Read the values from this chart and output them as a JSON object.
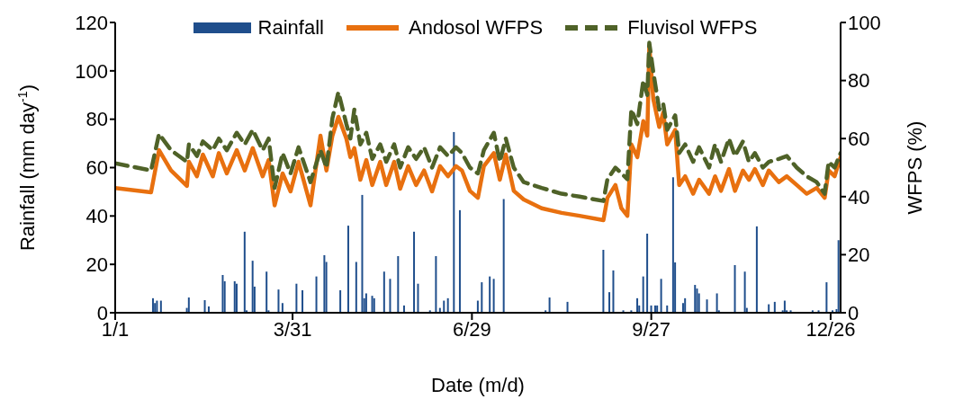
{
  "chart_data": {
    "type": "line",
    "xlabel": "Date (m/d)",
    "ylabel": "Rainfall (mm day$^{-1}$)",
    "y2label": "WFPS (%)",
    "xlim": [
      "--01-01",
      "--12-31"
    ],
    "xticks": [
      {
        "value": "--01-01",
        "label": "1/1"
      },
      {
        "value": "--03-31",
        "label": "3/31"
      },
      {
        "value": "--06-29",
        "label": "6/29"
      },
      {
        "value": "--09-27",
        "label": "9/27"
      },
      {
        "value": "--12-26",
        "label": "12/26"
      }
    ],
    "ylim": [
      0,
      120
    ],
    "yticks": [
      0,
      20,
      40,
      60,
      80,
      100,
      120
    ],
    "y2lim": [
      0,
      100
    ],
    "y2ticks": [
      0,
      20,
      40,
      60,
      80,
      100
    ],
    "legend": "top",
    "x": [
      "--01-01",
      "--01-19",
      "--01-23",
      "--01-29",
      "--02-06",
      "--02-07",
      "--02-11",
      "--02-14",
      "--02-19",
      "--02-22",
      "--02-26",
      "--03-03",
      "--03-07",
      "--03-11",
      "--03-16",
      "--03-19",
      "--03-22",
      "--03-26",
      "--03-30",
      "--04-03",
      "--04-09",
      "--04-14",
      "--04-17",
      "--04-20",
      "--04-23",
      "--04-27",
      "--04-29",
      "--05-01",
      "--05-04",
      "--05-07",
      "--05-10",
      "--05-14",
      "--05-17",
      "--05-21",
      "--05-24",
      "--05-28",
      "--06-01",
      "--06-05",
      "--06-09",
      "--06-13",
      "--06-17",
      "--06-21",
      "--06-24",
      "--06-28",
      "--07-02",
      "--07-05",
      "--07-10",
      "--07-13",
      "--07-16",
      "--07-20",
      "--07-25",
      "--08-03",
      "--08-13",
      "--08-22",
      "--09-03",
      "--09-05",
      "--09-09",
      "--09-12",
      "--09-15",
      "--09-17",
      "--09-20",
      "--09-23",
      "--09-25",
      "--09-26",
      "--09-28",
      "--10-01",
      "--10-03",
      "--10-05",
      "--10-09",
      "--10-11",
      "--10-14",
      "--10-18",
      "--10-21",
      "--10-26",
      "--10-29",
      "--11-01",
      "--11-05",
      "--11-08",
      "--11-12",
      "--11-15",
      "--11-18",
      "--11-22",
      "--11-25",
      "--11-30",
      "--12-04",
      "--12-09",
      "--12-14",
      "--12-19",
      "--12-23",
      "--12-25",
      "--12-28",
      "--12-31"
    ],
    "series": [
      {
        "name": "Rainfall",
        "type": "bar",
        "color": "#1f4e8c",
        "x": [
          "--01-20",
          "--01-21",
          "--01-22",
          "--01-24",
          "--02-06",
          "--02-07",
          "--02-15",
          "--02-17",
          "--02-24",
          "--02-25",
          "--03-02",
          "--03-03",
          "--03-07",
          "--03-08",
          "--03-11",
          "--03-12",
          "--03-18",
          "--03-19",
          "--03-24",
          "--03-26",
          "--04-02",
          "--04-05",
          "--04-12",
          "--04-16",
          "--04-17",
          "--04-24",
          "--04-28",
          "--05-02",
          "--05-05",
          "--05-06",
          "--05-07",
          "--05-10",
          "--05-11",
          "--05-16",
          "--05-19",
          "--05-23",
          "--05-26",
          "--05-31",
          "--06-02",
          "--06-08",
          "--06-11",
          "--06-13",
          "--06-15",
          "--06-17",
          "--06-20",
          "--06-23",
          "--07-02",
          "--07-04",
          "--07-08",
          "--07-10",
          "--07-15",
          "--08-05",
          "--08-07",
          "--08-16",
          "--09-03",
          "--09-06",
          "--09-08",
          "--09-13",
          "--09-17",
          "--09-20",
          "--09-21",
          "--09-23",
          "--09-25",
          "--09-27",
          "--09-29",
          "--09-30",
          "--10-02",
          "--10-05",
          "--10-08",
          "--10-09",
          "--10-13",
          "--10-14",
          "--10-19",
          "--10-20",
          "--10-21",
          "--10-25",
          "--10-30",
          "--10-31",
          "--11-08",
          "--11-13",
          "--11-14",
          "--11-19",
          "--11-25",
          "--11-28",
          "--12-02",
          "--12-03",
          "--12-04",
          "--12-06",
          "--12-17",
          "--12-20",
          "--12-24",
          "--12-27",
          "--12-29",
          "--12-30"
        ],
        "values": [
          6,
          4,
          5,
          5,
          2,
          6.3,
          5.2,
          2.6,
          15.6,
          13,
          13,
          12,
          33.5,
          1,
          21.5,
          10.8,
          17,
          1,
          9.6,
          4,
          12,
          9.3,
          15,
          23.8,
          21,
          9.3,
          36,
          21,
          48.7,
          6,
          8,
          7,
          6,
          17,
          14,
          23.4,
          3,
          33.5,
          12,
          1,
          23.4,
          2,
          5,
          6,
          74.7,
          42.4,
          5,
          12.6,
          15,
          14,
          47,
          1,
          6.3,
          4.5,
          26,
          8.5,
          17.5,
          1,
          1,
          6,
          3,
          15,
          32.7,
          3,
          3,
          3,
          14,
          3,
          56,
          20.8,
          4,
          6,
          11.5,
          10,
          8,
          5.5,
          8,
          1,
          19.7,
          17,
          2,
          35.7,
          3.5,
          4.5,
          1,
          5,
          1,
          1,
          1,
          1,
          12.6,
          1,
          1.5,
          30
        ]
      },
      {
        "name": "Andosol WFPS",
        "axis": "y2",
        "color": "#e8700f",
        "line_style": "solid",
        "values": [
          43,
          41.5,
          56,
          49,
          43.7,
          52,
          47,
          54.5,
          47,
          55,
          48,
          56,
          49,
          56.7,
          47,
          52.6,
          37,
          48,
          41.8,
          52,
          37,
          61,
          49,
          61,
          67.5,
          60,
          53.6,
          56.7,
          45.8,
          52.6,
          44,
          52,
          44,
          52,
          42.7,
          50.5,
          44,
          49,
          41.8,
          50.5,
          47,
          50.5,
          49,
          42,
          39.6,
          50.5,
          55,
          45.8,
          54.5,
          42,
          39,
          36,
          34.4,
          33.4,
          31.9,
          39.6,
          44,
          36,
          33.4,
          58,
          53.6,
          66,
          61,
          92,
          73.7,
          64,
          69,
          58,
          63,
          44,
          47,
          41,
          45.8,
          41,
          47,
          42,
          49.5,
          42,
          49,
          45.8,
          49.5,
          44,
          49,
          45,
          47,
          44,
          41,
          43,
          39.6,
          49,
          47,
          53.6
        ]
      },
      {
        "name": "Fluvisol WFPS",
        "axis": "y2",
        "color": "#4f6228",
        "line_style": "dashed",
        "values": [
          51.5,
          49,
          61.6,
          56,
          52,
          58,
          54,
          59,
          56,
          60,
          56,
          62,
          58,
          63,
          56,
          60,
          43,
          55,
          48,
          57,
          45,
          56,
          50,
          67,
          76,
          65,
          60,
          70,
          58,
          62,
          53,
          58,
          52,
          58,
          50,
          57,
          53,
          57,
          50,
          57,
          54,
          57,
          55,
          50,
          48,
          56,
          62,
          52,
          60,
          50,
          45,
          43,
          41,
          40,
          38.5,
          46,
          50,
          48,
          46,
          70,
          65,
          80,
          75,
          93,
          83,
          70,
          72,
          63,
          68,
          55,
          58,
          52,
          57,
          50,
          58,
          52,
          60,
          54,
          59,
          52,
          55,
          50,
          52,
          53,
          54,
          50,
          47,
          45,
          41,
          52,
          50,
          55
        ]
      }
    ]
  }
}
